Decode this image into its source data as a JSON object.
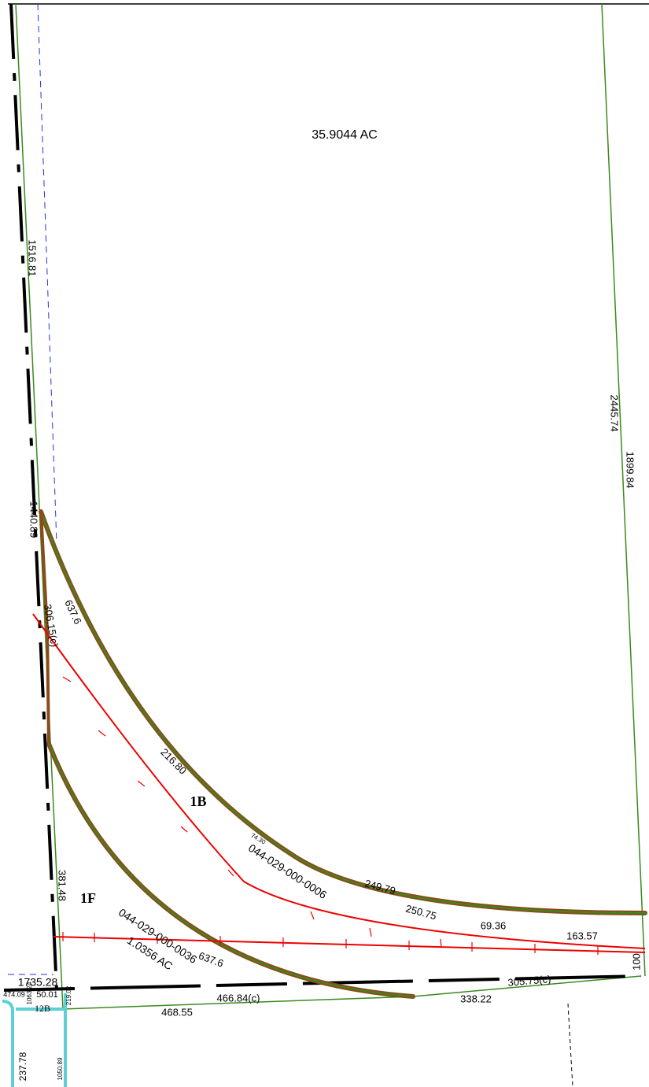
{
  "map": {
    "labels": [
      "35.9044 AC",
      "1516.81",
      "2445.74",
      "1899.84",
      "1440.89",
      "637.6",
      "306.15(c)",
      "216.80",
      "1B",
      "74.30",
      "044-029-000-0006",
      "249.79",
      "250.75",
      "69.36",
      "163.57",
      "381.48",
      "1F",
      "044-029-000-0036",
      "1.0356 AC",
      "637.6",
      "100",
      "305.75(c)",
      "466.84(c)",
      "338.22",
      "468.55",
      "1735.28",
      "474.09",
      "1063.24",
      "50.01",
      "219.02",
      "12B",
      "1050.89",
      "237.78"
    ]
  }
}
